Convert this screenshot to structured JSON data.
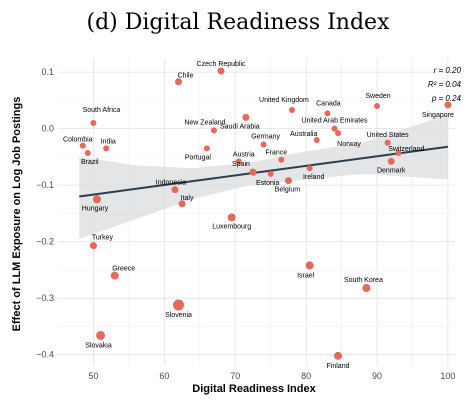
{
  "chart_data": {
    "type": "scatter",
    "title": "(d) Digital Readiness Index",
    "xlabel": "Digital Readiness Index",
    "ylabel": "Effect of LLM Exposure on Log Job Postings",
    "xlim": [
      45,
      101
    ],
    "ylim": [
      -0.42,
      0.125
    ],
    "xticks": [
      50,
      60,
      70,
      80,
      90,
      100
    ],
    "yticks": [
      0.1,
      0.0,
      -0.1,
      -0.2,
      -0.3,
      -0.4
    ],
    "ytick_labels": [
      "0.1",
      "0.0",
      "−0.1",
      "−0.2",
      "−0.3",
      "−0.4"
    ],
    "grid": true,
    "point_color": "#e8685a",
    "fit_line_color": "#2b3e50",
    "band_color": "#d9dcdf",
    "fit_line": {
      "x": [
        48,
        100
      ],
      "y": [
        -0.12,
        -0.032
      ]
    },
    "confidence_band": {
      "x": [
        48,
        56,
        64,
        72,
        80,
        88,
        100
      ],
      "upper": [
        -0.05,
        -0.065,
        -0.07,
        -0.06,
        -0.04,
        -0.025,
        0.025
      ],
      "lower": [
        -0.195,
        -0.16,
        -0.125,
        -0.1,
        -0.09,
        -0.08,
        -0.09
      ]
    },
    "annotations": [
      "r = 0.20",
      "R² = 0.04",
      "p = 0.24"
    ],
    "points": [
      {
        "label": "Czech Republic",
        "x": 68,
        "y": 0.102,
        "size": 3.5
      },
      {
        "label": "Chile",
        "x": 62,
        "y": 0.083,
        "size": 3.5
      },
      {
        "label": "South Africa",
        "x": 50,
        "y": 0.01,
        "size": 3
      },
      {
        "label": "Colombia",
        "x": 48.5,
        "y": -0.03,
        "size": 3
      },
      {
        "label": "Brazil",
        "x": 49.2,
        "y": -0.043,
        "size": 3
      },
      {
        "label": "India",
        "x": 51.8,
        "y": -0.035,
        "size": 3
      },
      {
        "label": "United Kingdom",
        "x": 78,
        "y": 0.033,
        "size": 3
      },
      {
        "label": "Canada",
        "x": 83,
        "y": 0.027,
        "size": 3
      },
      {
        "label": "Sweden",
        "x": 90,
        "y": 0.04,
        "size": 3
      },
      {
        "label": "Singapore",
        "x": 100,
        "y": 0.042,
        "size": 3.5
      },
      {
        "label": "Saudi Arabia",
        "x": 71.5,
        "y": 0.02,
        "size": 3.5
      },
      {
        "label": "New Zealand",
        "x": 67,
        "y": -0.003,
        "size": 3
      },
      {
        "label": "United Arab Emirates",
        "x": 84,
        "y": 0.0,
        "size": 3
      },
      {
        "label": "Norway",
        "x": 84.5,
        "y": -0.008,
        "size": 3
      },
      {
        "label": "Germany",
        "x": 74,
        "y": -0.028,
        "size": 3
      },
      {
        "label": "Australia",
        "x": 81.5,
        "y": -0.02,
        "size": 3
      },
      {
        "label": "Portugal",
        "x": 66,
        "y": -0.035,
        "size": 3
      },
      {
        "label": "Austria",
        "x": 70.5,
        "y": -0.058,
        "size": 3
      },
      {
        "label": "France",
        "x": 76.5,
        "y": -0.055,
        "size": 3
      },
      {
        "label": "United States",
        "x": 91.5,
        "y": -0.025,
        "size": 3
      },
      {
        "label": "Switzerland",
        "x": 93,
        "y": -0.043,
        "size": 3
      },
      {
        "label": "Denmark",
        "x": 92,
        "y": -0.058,
        "size": 3.5
      },
      {
        "label": "Spain",
        "x": 72.5,
        "y": -0.077,
        "size": 3.5
      },
      {
        "label": "Estonia",
        "x": 75,
        "y": -0.08,
        "size": 3
      },
      {
        "label": "Belgium",
        "x": 77.5,
        "y": -0.092,
        "size": 3.5
      },
      {
        "label": "Ireland",
        "x": 80.5,
        "y": -0.07,
        "size": 3
      },
      {
        "label": "Indonesia",
        "x": 61.5,
        "y": -0.108,
        "size": 3.5
      },
      {
        "label": "Italy",
        "x": 62.5,
        "y": -0.133,
        "size": 3.5
      },
      {
        "label": "Hungary",
        "x": 50.5,
        "y": -0.125,
        "size": 4
      },
      {
        "label": "Luxembourg",
        "x": 69.5,
        "y": -0.157,
        "size": 4
      },
      {
        "label": "Turkey",
        "x": 50,
        "y": -0.207,
        "size": 3.5
      },
      {
        "label": "Greece",
        "x": 53,
        "y": -0.26,
        "size": 4
      },
      {
        "label": "Israel",
        "x": 80.5,
        "y": -0.242,
        "size": 4
      },
      {
        "label": "South Korea",
        "x": 88.5,
        "y": -0.282,
        "size": 4
      },
      {
        "label": "Slovenia",
        "x": 62,
        "y": -0.312,
        "size": 5.5
      },
      {
        "label": "Slovakia",
        "x": 51,
        "y": -0.366,
        "size": 4.5
      },
      {
        "label": "Finland",
        "x": 84.5,
        "y": -0.402,
        "size": 4
      }
    ]
  }
}
